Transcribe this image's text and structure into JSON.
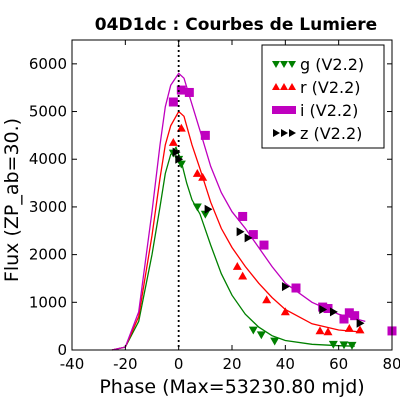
{
  "chart_data": {
    "type": "scatter",
    "title": "04D1dc : Courbes de Lumiere",
    "xlabel": "Phase (Max=53230.80 mjd)",
    "ylabel": "Flux (ZP_ab=30.)",
    "xlim": [
      -40,
      80
    ],
    "ylim": [
      0,
      6500
    ],
    "xticks": [
      -40,
      -20,
      0,
      20,
      40,
      60,
      80
    ],
    "yticks": [
      0,
      1000,
      2000,
      3000,
      4000,
      5000,
      6000
    ],
    "max_line_x": 0,
    "legend_position": "top-right",
    "series": [
      {
        "name": "g (V2.2)",
        "marker": "triangle-down",
        "color": "#008000",
        "points": [
          [
            -2,
            4130
          ],
          [
            0,
            4000
          ],
          [
            1,
            3900
          ],
          [
            7,
            3000
          ],
          [
            10,
            2850
          ],
          [
            28,
            420
          ],
          [
            31,
            320
          ],
          [
            36,
            190
          ],
          [
            58,
            120
          ],
          [
            62,
            110
          ],
          [
            65,
            100
          ]
        ],
        "curve": [
          [
            -25,
            0
          ],
          [
            -20,
            60
          ],
          [
            -15,
            600
          ],
          [
            -10,
            2000
          ],
          [
            -7,
            3000
          ],
          [
            -5,
            3700
          ],
          [
            -3,
            4100
          ],
          [
            -1,
            4250
          ],
          [
            1,
            3950
          ],
          [
            3,
            3500
          ],
          [
            5,
            3150
          ],
          [
            8,
            2850
          ],
          [
            12,
            2200
          ],
          [
            16,
            1600
          ],
          [
            20,
            1150
          ],
          [
            25,
            750
          ],
          [
            30,
            480
          ],
          [
            35,
            300
          ],
          [
            40,
            200
          ],
          [
            50,
            120
          ],
          [
            60,
            90
          ],
          [
            66,
            80
          ]
        ]
      },
      {
        "name": "r (V2.2)",
        "marker": "triangle-up",
        "color": "#ff0000",
        "points": [
          [
            -2,
            4350
          ],
          [
            1,
            4650
          ],
          [
            7,
            3700
          ],
          [
            9,
            3620
          ],
          [
            22,
            1750
          ],
          [
            24,
            1550
          ],
          [
            33,
            1050
          ],
          [
            40,
            800
          ],
          [
            53,
            400
          ],
          [
            56,
            380
          ],
          [
            64,
            450
          ],
          [
            68,
            420
          ]
        ],
        "curve": [
          [
            -25,
            0
          ],
          [
            -20,
            60
          ],
          [
            -15,
            700
          ],
          [
            -10,
            2400
          ],
          [
            -7,
            3600
          ],
          [
            -5,
            4300
          ],
          [
            -3,
            4700
          ],
          [
            0,
            5000
          ],
          [
            2,
            4900
          ],
          [
            5,
            4300
          ],
          [
            8,
            3800
          ],
          [
            12,
            3100
          ],
          [
            16,
            2550
          ],
          [
            20,
            2150
          ],
          [
            25,
            1750
          ],
          [
            30,
            1400
          ],
          [
            35,
            1100
          ],
          [
            40,
            850
          ],
          [
            50,
            550
          ],
          [
            60,
            420
          ],
          [
            68,
            380
          ]
        ]
      },
      {
        "name": "i (V2.2)",
        "marker": "square",
        "color": "#bf00bf",
        "points": [
          [
            -2,
            5200
          ],
          [
            1,
            5450
          ],
          [
            4,
            5400
          ],
          [
            10,
            4500
          ],
          [
            24,
            2800
          ],
          [
            28,
            2420
          ],
          [
            32,
            2200
          ],
          [
            44,
            1300
          ],
          [
            54,
            900
          ],
          [
            56,
            870
          ],
          [
            62,
            650
          ],
          [
            64,
            780
          ],
          [
            66,
            720
          ]
        ],
        "curve": [
          [
            -25,
            0
          ],
          [
            -20,
            60
          ],
          [
            -15,
            800
          ],
          [
            -10,
            2900
          ],
          [
            -7,
            4300
          ],
          [
            -5,
            5100
          ],
          [
            -3,
            5550
          ],
          [
            0,
            5800
          ],
          [
            2,
            5700
          ],
          [
            5,
            5150
          ],
          [
            8,
            4600
          ],
          [
            12,
            3850
          ],
          [
            16,
            3300
          ],
          [
            20,
            2900
          ],
          [
            25,
            2550
          ],
          [
            30,
            2150
          ],
          [
            35,
            1750
          ],
          [
            40,
            1400
          ],
          [
            50,
            1000
          ],
          [
            60,
            750
          ],
          [
            70,
            600
          ]
        ]
      },
      {
        "name": "z (V2.2)",
        "marker": "triangle-right",
        "color": "#000000",
        "points": [
          [
            -1,
            4150
          ],
          [
            0,
            4000
          ],
          [
            11,
            2950
          ],
          [
            23,
            2480
          ],
          [
            26,
            2350
          ],
          [
            40,
            1330
          ],
          [
            54,
            850
          ],
          [
            58,
            800
          ],
          [
            68,
            560
          ]
        ],
        "curve": []
      }
    ],
    "extra_points": [
      {
        "series": "i (V2.2)",
        "x": 80,
        "y": 400
      }
    ]
  }
}
